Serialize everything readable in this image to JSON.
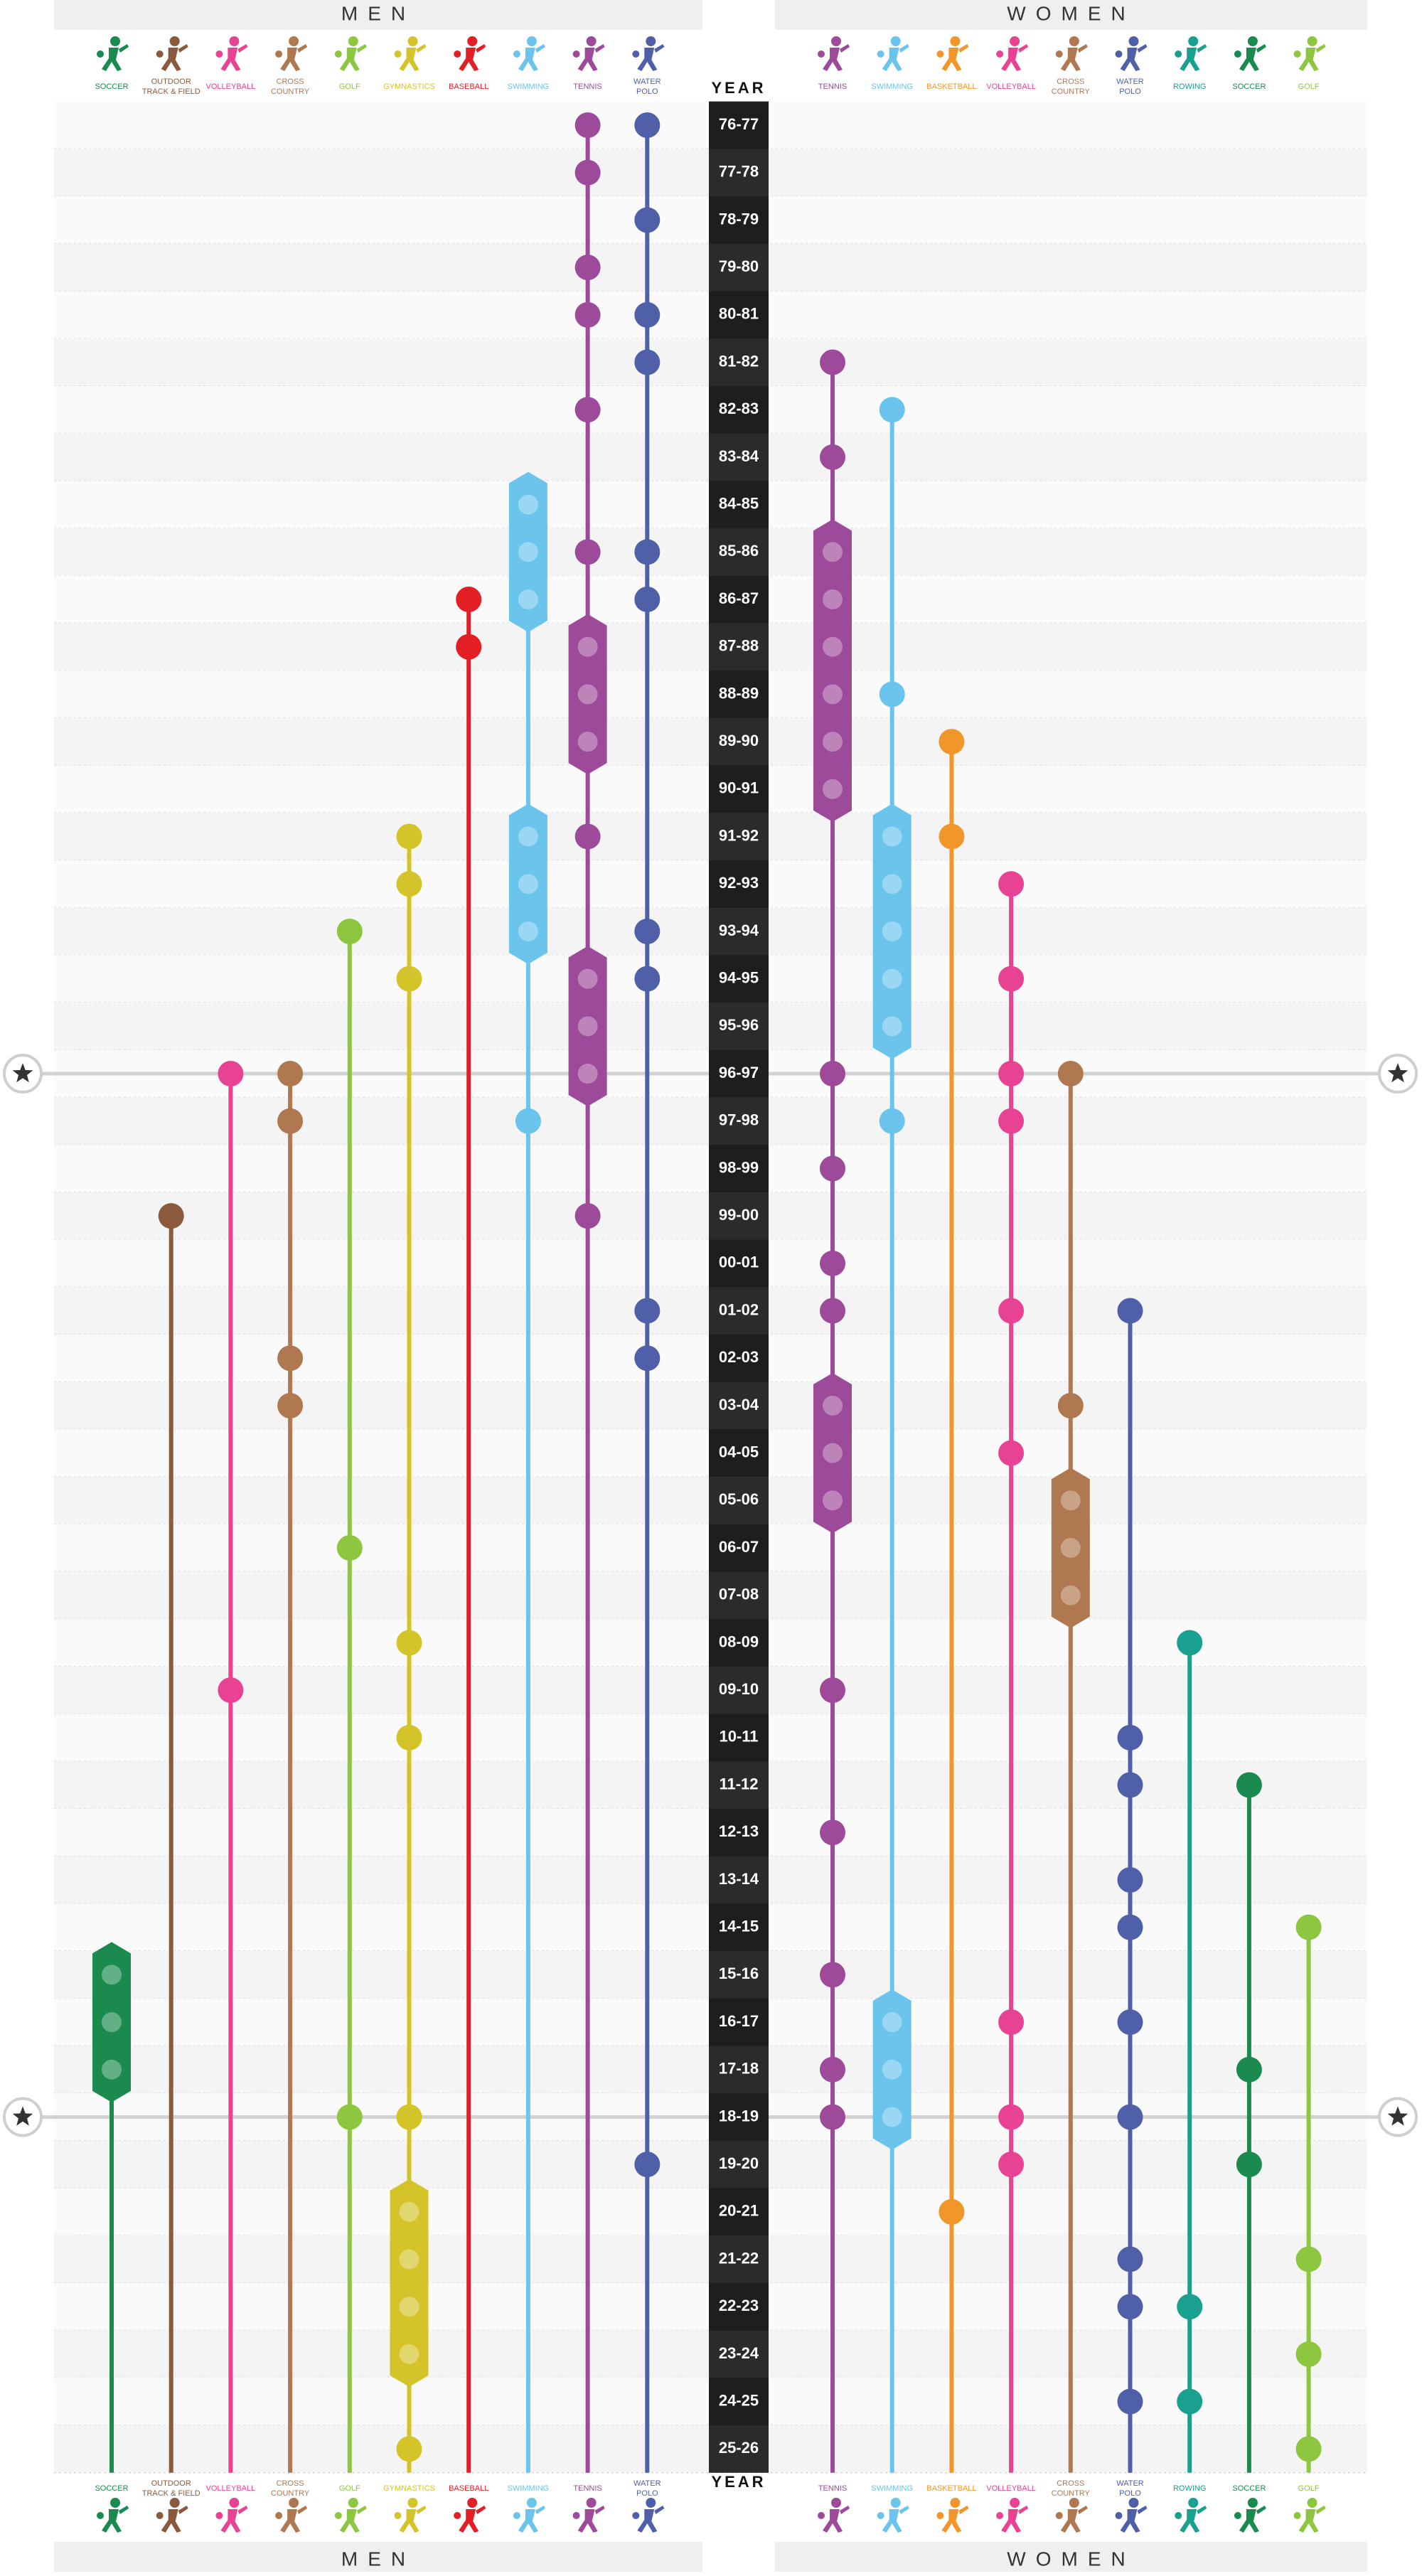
{
  "chart_data": {
    "type": "timeline",
    "axis_label": "YEAR",
    "categories": [
      "76-77",
      "77-78",
      "78-79",
      "79-80",
      "80-81",
      "81-82",
      "82-83",
      "83-84",
      "84-85",
      "85-86",
      "86-87",
      "87-88",
      "88-89",
      "89-90",
      "90-91",
      "91-92",
      "92-93",
      "93-94",
      "94-95",
      "95-96",
      "96-97",
      "97-98",
      "98-99",
      "99-00",
      "00-01",
      "01-02",
      "02-03",
      "03-04",
      "04-05",
      "05-06",
      "06-07",
      "07-08",
      "08-09",
      "09-10",
      "10-11",
      "11-12",
      "12-13",
      "13-14",
      "14-15",
      "15-16",
      "16-17",
      "17-18",
      "18-19",
      "19-20",
      "20-21",
      "21-22",
      "22-23",
      "23-24",
      "24-25",
      "25-26"
    ],
    "highlight_rows": [
      "96-97",
      "18-19"
    ],
    "groups": [
      {
        "label": "MEN",
        "sports": [
          {
            "label": [
              "SOCCER"
            ],
            "color": "#1a8a4e",
            "titles": [
              "15-16",
              "16-17",
              "17-18"
            ]
          },
          {
            "label": [
              "OUTDOOR",
              "TRACK & FIELD"
            ],
            "color": "#8b5a3c",
            "titles": [
              "99-00"
            ]
          },
          {
            "label": [
              "VOLLEYBALL"
            ],
            "color": "#e84393",
            "titles": [
              "96-97",
              "09-10"
            ]
          },
          {
            "label": [
              "CROSS",
              "COUNTRY"
            ],
            "color": "#b07850",
            "titles": [
              "96-97",
              "97-98",
              "02-03",
              "03-04"
            ]
          },
          {
            "label": [
              "GOLF"
            ],
            "color": "#8dc63f",
            "titles": [
              "93-94",
              "06-07",
              "18-19"
            ]
          },
          {
            "label": [
              "GYMNASTICS"
            ],
            "color": "#d4c42a",
            "titles": [
              "91-92",
              "92-93",
              "94-95",
              "08-09",
              "10-11",
              "18-19",
              "20-21",
              "21-22",
              "22-23",
              "23-24",
              "25-26"
            ]
          },
          {
            "label": [
              "BASEBALL"
            ],
            "color": "#e31e24",
            "titles": [
              "86-87",
              "87-88"
            ]
          },
          {
            "label": [
              "SWIMMING"
            ],
            "color": "#6ac4ec",
            "titles": [
              "84-85",
              "85-86",
              "86-87",
              "91-92",
              "92-93",
              "93-94",
              "97-98"
            ]
          },
          {
            "label": [
              "TENNIS"
            ],
            "color": "#9e4a9a",
            "titles": [
              "76-77",
              "77-78",
              "79-80",
              "80-81",
              "82-83",
              "85-86",
              "87-88",
              "88-89",
              "89-90",
              "91-92",
              "94-95",
              "95-96",
              "96-97",
              "99-00"
            ]
          },
          {
            "label": [
              "WATER",
              "POLO"
            ],
            "color": "#4f5fa8",
            "titles": [
              "76-77",
              "78-79",
              "80-81",
              "81-82",
              "85-86",
              "86-87",
              "93-94",
              "94-95",
              "01-02",
              "02-03",
              "19-20"
            ]
          }
        ]
      },
      {
        "label": "WOMEN",
        "sports": [
          {
            "label": [
              "TENNIS"
            ],
            "color": "#9e4a9a",
            "titles": [
              "81-82",
              "83-84",
              "85-86",
              "86-87",
              "87-88",
              "88-89",
              "89-90",
              "90-91",
              "96-97",
              "98-99",
              "00-01",
              "01-02",
              "03-04",
              "04-05",
              "05-06",
              "09-10",
              "12-13",
              "15-16",
              "17-18",
              "18-19"
            ]
          },
          {
            "label": [
              "SWIMMING"
            ],
            "color": "#6ac4ec",
            "titles": [
              "82-83",
              "88-89",
              "91-92",
              "92-93",
              "93-94",
              "94-95",
              "95-96",
              "97-98",
              "16-17",
              "17-18",
              "18-19"
            ]
          },
          {
            "label": [
              "BASKETBALL"
            ],
            "color": "#f0962a",
            "titles": [
              "89-90",
              "91-92",
              "20-21"
            ]
          },
          {
            "label": [
              "VOLLEYBALL"
            ],
            "color": "#e84393",
            "titles": [
              "92-93",
              "94-95",
              "96-97",
              "97-98",
              "01-02",
              "04-05",
              "16-17",
              "18-19",
              "19-20"
            ]
          },
          {
            "label": [
              "CROSS",
              "COUNTRY"
            ],
            "color": "#b07850",
            "titles": [
              "96-97",
              "03-04",
              "05-06",
              "06-07",
              "07-08"
            ]
          },
          {
            "label": [
              "WATER",
              "POLO"
            ],
            "color": "#4f5fa8",
            "titles": [
              "01-02",
              "10-11",
              "11-12",
              "13-14",
              "14-15",
              "16-17",
              "18-19",
              "21-22",
              "22-23",
              "24-25"
            ]
          },
          {
            "label": [
              "ROWING"
            ],
            "color": "#1aa08f",
            "titles": [
              "08-09",
              "22-23",
              "24-25"
            ]
          },
          {
            "label": [
              "SOCCER"
            ],
            "color": "#1a8a4e",
            "titles": [
              "11-12",
              "17-18",
              "19-20"
            ]
          },
          {
            "label": [
              "GOLF"
            ],
            "color": "#8dc63f",
            "titles": [
              "14-15",
              "21-22",
              "23-24",
              "25-26"
            ]
          }
        ]
      }
    ]
  }
}
